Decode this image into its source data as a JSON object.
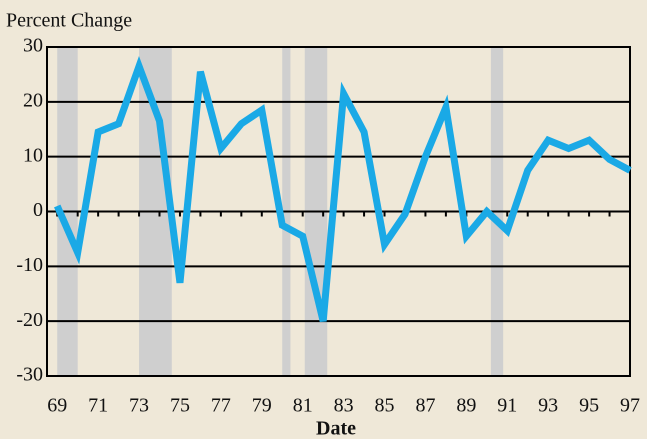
{
  "chart_data": {
    "type": "line",
    "y_axis_label": "Percent Change",
    "x_axis_label": "Date",
    "x": [
      69,
      70,
      71,
      72,
      73,
      74,
      75,
      76,
      77,
      78,
      79,
      80,
      81,
      82,
      83,
      84,
      85,
      86,
      87,
      88,
      89,
      90,
      91,
      92,
      93,
      94,
      95,
      96,
      97
    ],
    "series": [
      {
        "name": "Percent Change",
        "color": "#1aa9e6",
        "values": [
          1,
          -7.5,
          14.5,
          16,
          26.5,
          16.5,
          -13,
          25.5,
          11.5,
          16,
          18.5,
          -2.5,
          -4.5,
          -20,
          21.5,
          14.5,
          -6,
          -0.5,
          10,
          19,
          -4.5,
          0,
          -3.5,
          7.5,
          13,
          11.5,
          13,
          9.5,
          7.5
        ]
      }
    ],
    "shaded_periods": [
      [
        69,
        70
      ],
      [
        73,
        74.6
      ],
      [
        80,
        80.4
      ],
      [
        81.1,
        82.2
      ],
      [
        90.2,
        90.8
      ]
    ],
    "shade_color": "#cfcfcf",
    "xlim": [
      68.5,
      97
    ],
    "xticks": [
      69,
      71,
      73,
      75,
      77,
      79,
      81,
      83,
      85,
      87,
      89,
      91,
      93,
      95,
      97
    ],
    "xticks_minor": [
      70,
      72,
      74,
      76,
      78,
      80,
      82,
      84,
      86,
      88,
      90,
      92,
      94,
      96
    ],
    "ylim": [
      -30,
      30
    ],
    "yticks": [
      -30,
      -20,
      -10,
      0,
      10,
      20,
      30
    ],
    "grid": true
  }
}
